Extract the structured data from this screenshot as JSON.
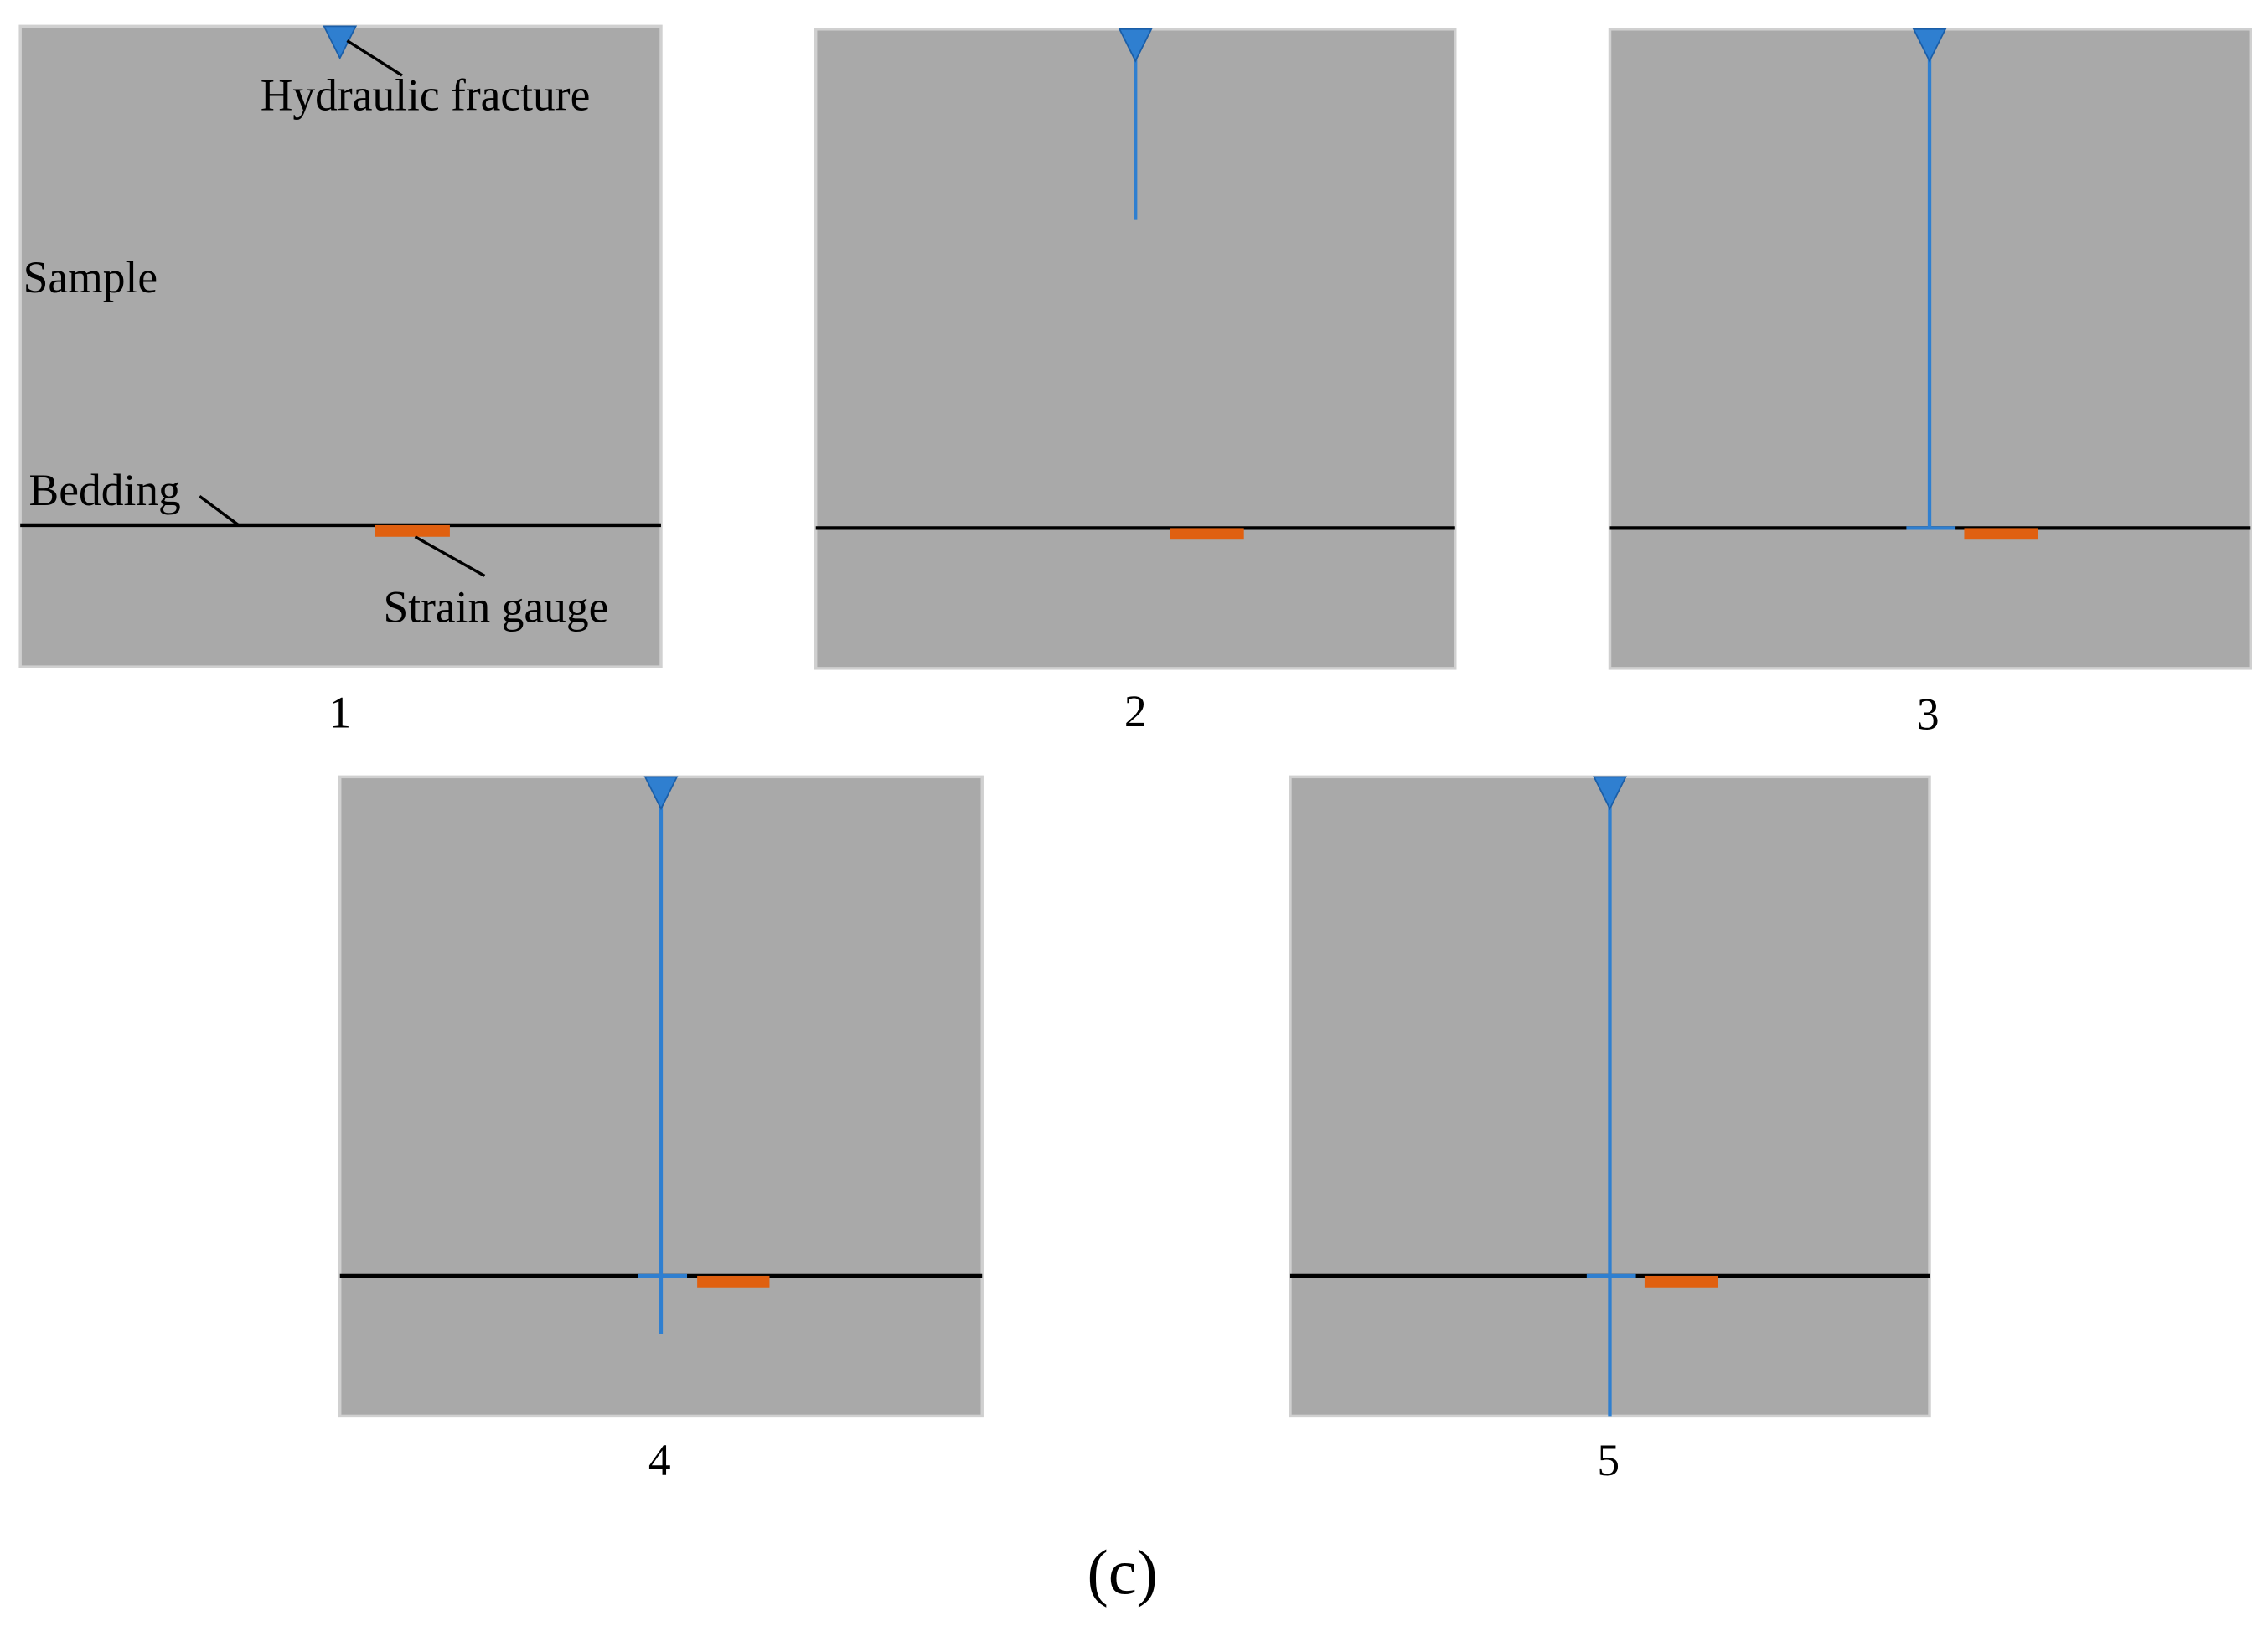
{
  "annotations": {
    "hydraulic_fracture": "Hydraulic fracture",
    "sample": "Sample",
    "bedding": "Bedding",
    "strain_gauge": "Strain gauge"
  },
  "panels": [
    {
      "label": "1"
    },
    {
      "label": "2"
    },
    {
      "label": "3"
    },
    {
      "label": "4"
    },
    {
      "label": "5"
    }
  ],
  "caption": "(c)"
}
